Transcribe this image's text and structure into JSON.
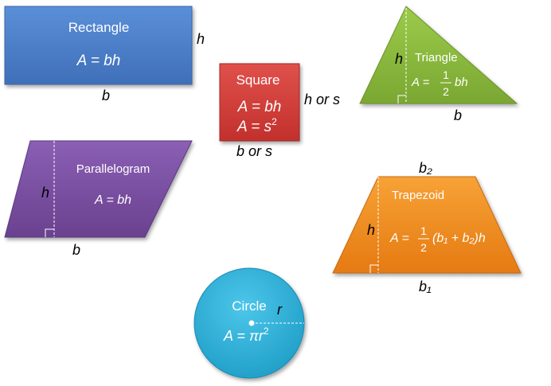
{
  "colors": {
    "rectangle": "#4a7ec9",
    "square": "#d13b37",
    "triangle": "#8dbb3d",
    "parallelogram": "#7a4fa2",
    "trapezoid": "#f08a1e",
    "circle": "#2db1d8"
  },
  "rectangle": {
    "title": "Rectangle",
    "formula": "A = bh",
    "height_label": "h",
    "base_label": "b"
  },
  "square": {
    "title": "Square",
    "formula1": "A = bh",
    "formula2_prefix": "A = s",
    "formula2_exp": "2",
    "side_label": "h or s",
    "base_label": "b or s"
  },
  "triangle": {
    "title": "Triangle",
    "formula_prefix": "A =",
    "frac_num": "1",
    "frac_den": "2",
    "formula_suffix": "bh",
    "height_label": "h",
    "base_label": "b"
  },
  "parallelogram": {
    "title": "Parallelogram",
    "formula": "A = bh",
    "height_label": "h",
    "base_label": "b"
  },
  "trapezoid": {
    "title": "Trapezoid",
    "formula_prefix": "A =",
    "frac_num": "1",
    "frac_den": "2",
    "formula_suffix": "(b₁ + b₂)h",
    "height_label": "h",
    "top_label": "b₂",
    "bottom_label": "b₁"
  },
  "circle": {
    "title": "Circle",
    "formula_prefix": "A = πr",
    "formula_exp": "2",
    "radius_label": "r"
  }
}
